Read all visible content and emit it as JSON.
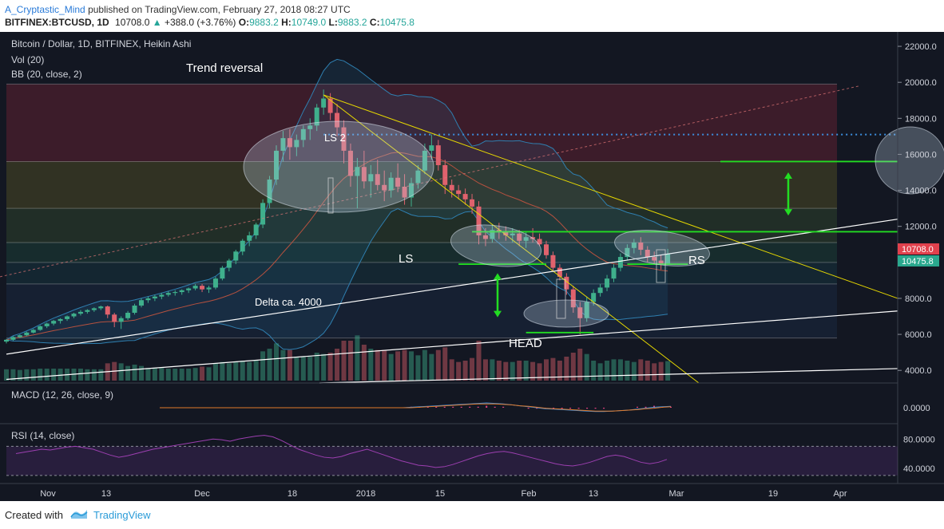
{
  "header": {
    "author": "A_Cryptastic_Mind",
    "published_text": "published on TradingView.com, February 27, 2018 08:27 UTC",
    "symbol": "BITFINEX:BTCUSD, 1D",
    "last": "10708.0",
    "change": "+388.0 (+3.76%)",
    "o_label": "O:",
    "o_value": "9883.2",
    "h_label": "H:",
    "h_value": "10749.0",
    "l_label": "L:",
    "l_value": "9883.2",
    "c_label": "C:",
    "c_value": "10475.8"
  },
  "legend": {
    "title": "Bitcoin / Dollar, 1D, BITFINEX, Heikin Ashi",
    "vol": "Vol (20)",
    "bb": "BB (20, close, 2)",
    "macd": "MACD (12, 26, close, 9)",
    "rsi": "RSI (14, close)"
  },
  "annotations": {
    "trend_reversal": "Trend reversal",
    "ls2": "LS 2",
    "ls": "LS",
    "head": "HEAD",
    "rs": "RS",
    "delta": "Delta ca. 4000"
  },
  "price_tags": {
    "last": "10708.0",
    "close": "10475.8"
  },
  "footer": {
    "created_with": "Created with",
    "brand": "TradingView"
  },
  "colors": {
    "background": "#131722",
    "bull": "#3fb08c",
    "bear": "#e0626d",
    "trendline": "#e6d800",
    "neckline": "#22dd22",
    "tag_red": "#e0414d",
    "tag_teal": "#2aa88e"
  },
  "chart_data": [
    {
      "type": "candlestick",
      "title": "Bitcoin / Dollar, 1D, BITFINEX, Heikin Ashi",
      "x_ticks": [
        "Nov",
        "13",
        "Dec",
        "18",
        "2018",
        "15",
        "Feb",
        "13",
        "Mar",
        "19",
        "Apr"
      ],
      "y_ticks": [
        4000,
        6000,
        8000,
        10000,
        12000,
        14000,
        16000,
        18000,
        20000,
        22000
      ],
      "ylim": [
        3300,
        22800
      ],
      "y_scale": "linear",
      "axis_side": "right",
      "grid": false,
      "candles": [
        [
          5600,
          5750,
          5500,
          5700
        ],
        [
          5700,
          5900,
          5650,
          5850
        ],
        [
          5850,
          6000,
          5800,
          5950
        ],
        [
          5950,
          6150,
          5900,
          6100
        ],
        [
          6100,
          6300,
          6050,
          6250
        ],
        [
          6250,
          6500,
          6200,
          6450
        ],
        [
          6450,
          6650,
          6350,
          6600
        ],
        [
          6600,
          6800,
          6500,
          6750
        ],
        [
          6750,
          6900,
          6600,
          6850
        ],
        [
          6850,
          7050,
          6750,
          7000
        ],
        [
          7000,
          7200,
          6900,
          7150
        ],
        [
          7150,
          7350,
          7050,
          7250
        ],
        [
          7250,
          7400,
          7150,
          7350
        ],
        [
          7350,
          7500,
          7250,
          7450
        ],
        [
          7450,
          7600,
          7350,
          7550
        ],
        [
          7550,
          7600,
          6900,
          7100
        ],
        [
          7100,
          7200,
          6400,
          6700
        ],
        [
          6700,
          7000,
          6300,
          6900
        ],
        [
          6900,
          7300,
          6800,
          7200
        ],
        [
          7200,
          7700,
          7100,
          7600
        ],
        [
          7600,
          8000,
          7500,
          7900
        ],
        [
          7900,
          8100,
          7750,
          8000
        ],
        [
          8000,
          8200,
          7850,
          8100
        ],
        [
          8100,
          8300,
          7950,
          8200
        ],
        [
          8200,
          8400,
          8100,
          8300
        ],
        [
          8300,
          8450,
          8150,
          8350
        ],
        [
          8350,
          8500,
          8200,
          8450
        ],
        [
          8450,
          8600,
          8300,
          8550
        ],
        [
          8550,
          8800,
          8450,
          8700
        ],
        [
          8700,
          8800,
          8350,
          8500
        ],
        [
          8500,
          8700,
          8300,
          8600
        ],
        [
          8600,
          9200,
          8500,
          9100
        ],
        [
          9100,
          9800,
          9000,
          9700
        ],
        [
          9700,
          10200,
          9500,
          10100
        ],
        [
          10100,
          10700,
          9900,
          10600
        ],
        [
          10600,
          11300,
          10400,
          11200
        ],
        [
          11200,
          11700,
          10900,
          11500
        ],
        [
          11500,
          12200,
          11300,
          12100
        ],
        [
          12100,
          13500,
          11900,
          13300
        ],
        [
          13300,
          14800,
          13000,
          14600
        ],
        [
          14600,
          16500,
          14300,
          16200
        ],
        [
          16200,
          17300,
          15600,
          16900
        ],
        [
          16900,
          17400,
          15700,
          16400
        ],
        [
          16400,
          17100,
          15900,
          16800
        ],
        [
          16800,
          17600,
          16400,
          17400
        ],
        [
          17400,
          18000,
          16800,
          17600
        ],
        [
          17600,
          18800,
          17300,
          18600
        ],
        [
          18600,
          19600,
          18200,
          19100
        ],
        [
          19100,
          19400,
          17900,
          18300
        ],
        [
          18300,
          18800,
          17000,
          17500
        ],
        [
          17500,
          17900,
          15500,
          16200
        ],
        [
          16200,
          16600,
          14200,
          14800
        ],
        [
          14800,
          15800,
          13000,
          15300
        ],
        [
          15300,
          16200,
          14100,
          14500
        ],
        [
          14500,
          15400,
          13600,
          14900
        ],
        [
          14900,
          15700,
          14000,
          14300
        ],
        [
          14300,
          15100,
          13400,
          14000
        ],
        [
          14000,
          15000,
          13600,
          14700
        ],
        [
          14700,
          15500,
          13900,
          14200
        ],
        [
          14200,
          14900,
          13200,
          13600
        ],
        [
          13600,
          14700,
          13100,
          14400
        ],
        [
          14400,
          15400,
          14100,
          15100
        ],
        [
          15100,
          16600,
          14900,
          16200
        ],
        [
          16200,
          17100,
          15700,
          16500
        ],
        [
          16500,
          16800,
          15100,
          15400
        ],
        [
          15400,
          15700,
          13800,
          14300
        ],
        [
          14300,
          14600,
          13600,
          14000
        ],
        [
          14000,
          14300,
          13500,
          13800
        ],
        [
          13800,
          14100,
          13200,
          13500
        ],
        [
          13500,
          13800,
          12700,
          13100
        ],
        [
          13100,
          13400,
          11000,
          11500
        ],
        [
          11500,
          11900,
          10900,
          11300
        ],
        [
          11300,
          12100,
          11100,
          11800
        ],
        [
          11800,
          12200,
          11300,
          11700
        ],
        [
          11700,
          12000,
          11200,
          11500
        ],
        [
          11500,
          11900,
          11100,
          11600
        ],
        [
          11600,
          11800,
          10900,
          11200
        ],
        [
          11200,
          11700,
          10800,
          11400
        ],
        [
          11400,
          11900,
          11100,
          11300
        ],
        [
          11300,
          11600,
          10900,
          11000
        ],
        [
          11000,
          11200,
          10200,
          10400
        ],
        [
          10400,
          10600,
          9500,
          9700
        ],
        [
          9700,
          9900,
          9000,
          9200
        ],
        [
          9200,
          9400,
          8200,
          8500
        ],
        [
          8500,
          8700,
          7200,
          7500
        ],
        [
          7500,
          7800,
          6000,
          6900
        ],
        [
          6900,
          8100,
          6700,
          7800
        ],
        [
          7800,
          8500,
          7600,
          8300
        ],
        [
          8300,
          8800,
          8100,
          8600
        ],
        [
          8600,
          9300,
          8400,
          9100
        ],
        [
          9100,
          9900,
          8900,
          9700
        ],
        [
          9700,
          10500,
          9500,
          10300
        ],
        [
          10300,
          11000,
          10100,
          10800
        ],
        [
          10800,
          11300,
          10500,
          11100
        ],
        [
          11100,
          11400,
          10400,
          10700
        ],
        [
          10700,
          10900,
          10000,
          10300
        ],
        [
          10300,
          10600,
          9900,
          10100
        ],
        [
          10100,
          10400,
          9600,
          9900
        ],
        [
          9883,
          10749,
          9883,
          10476
        ]
      ],
      "levels_fib": [
        19900,
        15600,
        13000,
        11100,
        10000,
        8800,
        5800
      ],
      "dotted_resistance": 17100,
      "neckline_upper": 11700,
      "neckline_lower_LS": 9900,
      "head_bottom": 6100,
      "target_line": 15600,
      "annotations": [
        "Trend reversal",
        "LS 2",
        "LS",
        "HEAD",
        "RS",
        "Delta ca. 4000"
      ]
    },
    {
      "type": "line",
      "title": "MACD (12, 26, close, 9)",
      "y_ticks": [
        0.0
      ],
      "series": [
        {
          "values": [
            0.0,
            0.0,
            0.0,
            0.0,
            0.0,
            0.0,
            0.0,
            0.0,
            0.0,
            0.0,
            0.0,
            0.0,
            0.0,
            0.0,
            0.0,
            0.0,
            0.0,
            0.0,
            0.0,
            0.0,
            0.0,
            0.0,
            0.0,
            0.0,
            0.0,
            0.0,
            0.0,
            0.0,
            0.0,
            0.0,
            0.1,
            0.2,
            0.3,
            0.4,
            0.5,
            0.6,
            0.7,
            0.8,
            0.9,
            1.0,
            0.9,
            0.8,
            0.6,
            0.4,
            0.2,
            0.0,
            -0.2,
            -0.3,
            -0.4,
            -0.5,
            -0.6,
            -0.7,
            -0.8,
            -0.8,
            -0.7,
            -0.6,
            -0.5,
            -0.3,
            -0.1,
            0.1,
            0.2,
            0.3
          ]
        },
        {
          "values": [
            0.0,
            0.0,
            0.0,
            0.0,
            0.0,
            0.0,
            0.0,
            0.0,
            0.0,
            0.0,
            0.0,
            0.0,
            0.0,
            0.0,
            0.0,
            0.0,
            0.0,
            0.0,
            0.0,
            0.0,
            0.0,
            0.0,
            0.0,
            0.0,
            0.0,
            0.0,
            0.0,
            0.0,
            0.0,
            0.0,
            0.0,
            0.1,
            0.2,
            0.3,
            0.4,
            0.5,
            0.6,
            0.7,
            0.8,
            0.8,
            0.8,
            0.7,
            0.6,
            0.4,
            0.3,
            0.1,
            -0.1,
            -0.2,
            -0.3,
            -0.4,
            -0.5,
            -0.6,
            -0.7,
            -0.7,
            -0.7,
            -0.6,
            -0.5,
            -0.4,
            -0.2,
            -0.1,
            0.1,
            0.2
          ]
        }
      ]
    },
    {
      "type": "line",
      "title": "RSI (14, close)",
      "y_ticks": [
        40.0,
        80.0
      ],
      "ylim": [
        20,
        100
      ],
      "series": [
        {
          "values": [
            60,
            62,
            64,
            66,
            65,
            67,
            69,
            70,
            68,
            66,
            62,
            58,
            55,
            57,
            60,
            63,
            66,
            68,
            70,
            72,
            74,
            76,
            78,
            80,
            79,
            77,
            80,
            82,
            84,
            85,
            83,
            78,
            72,
            66,
            62,
            58,
            55,
            54,
            56,
            60,
            63,
            66,
            62,
            58,
            54,
            50,
            47,
            44,
            43,
            41,
            42,
            45,
            49,
            53,
            57,
            60,
            62,
            63,
            61,
            58,
            55,
            52,
            49,
            46,
            44,
            43,
            45,
            48,
            52,
            56,
            58,
            56,
            52,
            48,
            46,
            48,
            52
          ]
        }
      ]
    }
  ]
}
